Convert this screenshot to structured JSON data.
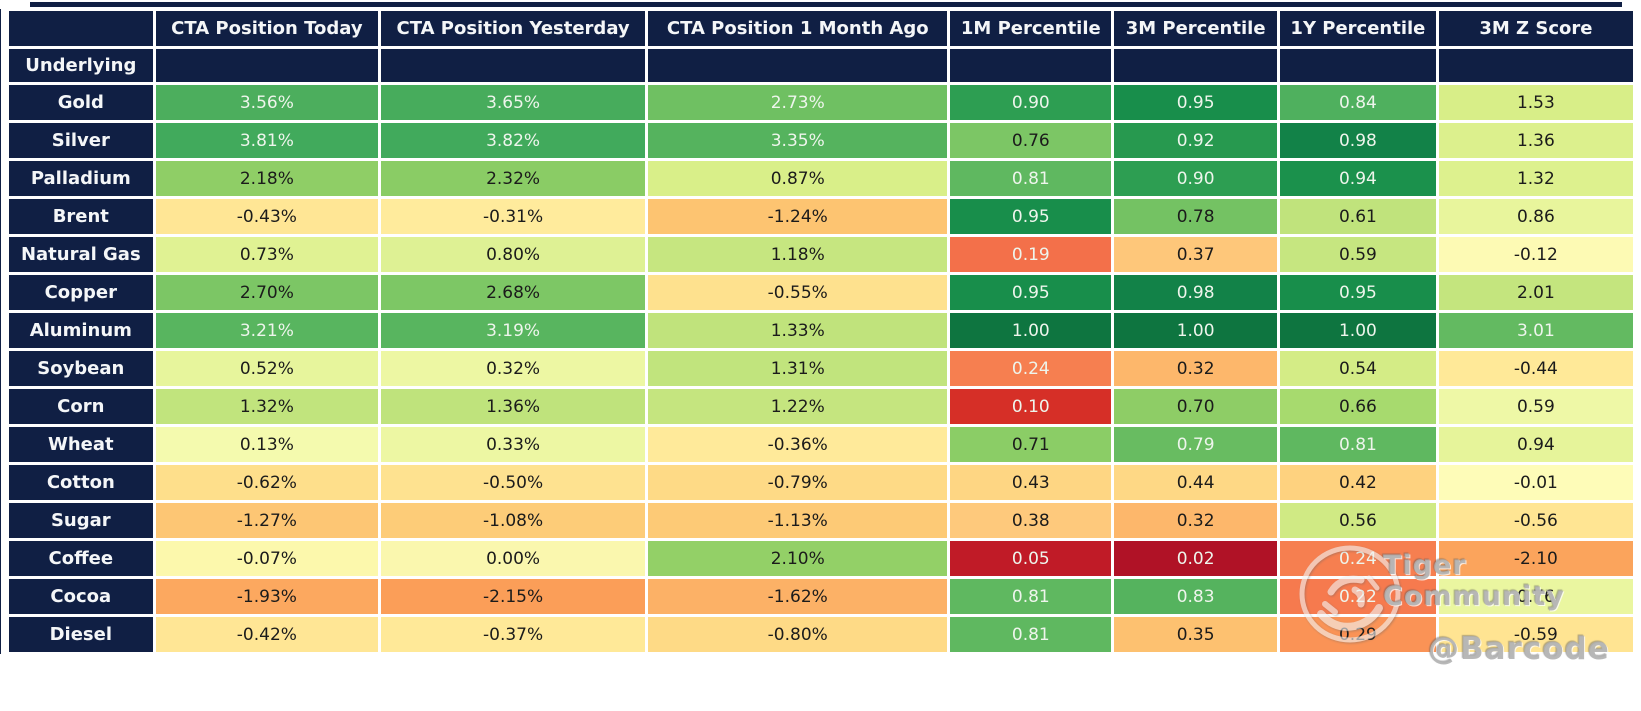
{
  "colors": {
    "header_bg": "#101f44",
    "text_light": "#eef5ec",
    "text_dark": "#1b1b1b",
    "page_bg": "#ffffff"
  },
  "watermark": {
    "community_label": "Tiger Community",
    "handle": "@Barcode",
    "stamp_icon": "circular-stamp"
  },
  "chart_data": {
    "type": "table",
    "subtype": "heatmap",
    "title": "",
    "row_header": "Underlying",
    "colormap": "red-yellow-green",
    "columns": [
      "CTA Position Today",
      "CTA Position Yesterday",
      "CTA Position 1 Month Ago",
      "1M Percentile",
      "3M Percentile",
      "1Y Percentile",
      "3M Z Score"
    ],
    "rows": [
      {
        "label": "Gold",
        "values": [
          "3.56%",
          "3.65%",
          "2.73%",
          "0.90",
          "0.95",
          "0.84",
          "1.53"
        ],
        "bg": [
          "#4cae5d",
          "#47ac5c",
          "#6fc062",
          "#2d9e52",
          "#188e4b",
          "#4fb05e",
          "#d8ee88"
        ],
        "fg": [
          "w",
          "w",
          "w",
          "w",
          "w",
          "w",
          "d"
        ]
      },
      {
        "label": "Silver",
        "values": [
          "3.81%",
          "3.82%",
          "3.35%",
          "0.76",
          "0.92",
          "0.98",
          "1.36"
        ],
        "bg": [
          "#41aa5c",
          "#41aa5c",
          "#55b35e",
          "#7cc665",
          "#27994f",
          "#128248",
          "#dcf08d"
        ],
        "fg": [
          "w",
          "w",
          "w",
          "d",
          "w",
          "w",
          "d"
        ]
      },
      {
        "label": "Palladium",
        "values": [
          "2.18%",
          "2.32%",
          "0.87%",
          "0.81",
          "0.90",
          "0.94",
          "1.32"
        ],
        "bg": [
          "#8fce66",
          "#8acc65",
          "#d9ef89",
          "#5fb860",
          "#2d9e52",
          "#1b914c",
          "#ddf18e"
        ],
        "fg": [
          "d",
          "d",
          "d",
          "w",
          "w",
          "w",
          "d"
        ]
      },
      {
        "label": "Brent",
        "values": [
          "-0.43%",
          "-0.31%",
          "-1.24%",
          "0.95",
          "0.78",
          "0.61",
          "0.86"
        ],
        "bg": [
          "#ffe695",
          "#ffeb9c",
          "#fdc471",
          "#188e4b",
          "#74c263",
          "#c0e37c",
          "#e8f59c"
        ],
        "fg": [
          "d",
          "d",
          "d",
          "w",
          "d",
          "d",
          "d"
        ]
      },
      {
        "label": "Natural Gas",
        "values": [
          "0.73%",
          "0.80%",
          "1.18%",
          "0.19",
          "0.37",
          "0.59",
          "-0.12"
        ],
        "bg": [
          "#e0f293",
          "#def194",
          "#c6e680",
          "#f3704a",
          "#fec77a",
          "#c6e680",
          "#fdfab4"
        ],
        "fg": [
          "d",
          "d",
          "d",
          "w",
          "d",
          "d",
          "d"
        ]
      },
      {
        "label": "Copper",
        "values": [
          "2.70%",
          "2.68%",
          "-0.55%",
          "0.95",
          "0.98",
          "0.95",
          "2.01"
        ],
        "bg": [
          "#7cc665",
          "#7dc765",
          "#fee18e",
          "#188e4b",
          "#128248",
          "#188e4b",
          "#c4e57e"
        ],
        "fg": [
          "d",
          "d",
          "d",
          "w",
          "w",
          "w",
          "d"
        ]
      },
      {
        "label": "Aluminum",
        "values": [
          "3.21%",
          "3.19%",
          "1.33%",
          "1.00",
          "1.00",
          "1.00",
          "3.01"
        ],
        "bg": [
          "#58b55f",
          "#58b55f",
          "#c0e37c",
          "#0e7540",
          "#0e7540",
          "#0e7540",
          "#63ba61"
        ],
        "fg": [
          "w",
          "w",
          "d",
          "w",
          "w",
          "w",
          "w"
        ]
      },
      {
        "label": "Soybean",
        "values": [
          "0.52%",
          "0.32%",
          "1.31%",
          "0.24",
          "0.32",
          "0.54",
          "-0.44"
        ],
        "bg": [
          "#e7f59c",
          "#edf7a3",
          "#c1e47d",
          "#f67f50",
          "#fdb76b",
          "#d4ec86",
          "#ffe998"
        ],
        "fg": [
          "d",
          "d",
          "d",
          "w",
          "d",
          "d",
          "d"
        ]
      },
      {
        "label": "Corn",
        "values": [
          "1.32%",
          "1.36%",
          "1.22%",
          "0.10",
          "0.70",
          "0.66",
          "0.59"
        ],
        "bg": [
          "#c1e47d",
          "#bfe37c",
          "#c5e57f",
          "#d62f27",
          "#8ecd66",
          "#a7da6e",
          "#eef8a6"
        ],
        "fg": [
          "d",
          "d",
          "d",
          "w",
          "d",
          "d",
          "d"
        ]
      },
      {
        "label": "Wheat",
        "values": [
          "0.13%",
          "0.33%",
          "-0.36%",
          "0.71",
          "0.79",
          "0.81",
          "0.94"
        ],
        "bg": [
          "#f4faae",
          "#edf7a3",
          "#ffea9a",
          "#8bcd66",
          "#68bc61",
          "#5fb860",
          "#e6f49a"
        ],
        "fg": [
          "d",
          "d",
          "d",
          "d",
          "w",
          "w",
          "d"
        ]
      },
      {
        "label": "Cotton",
        "values": [
          "-0.62%",
          "-0.50%",
          "-0.79%",
          "0.43",
          "0.44",
          "0.42",
          "-0.01"
        ],
        "bg": [
          "#fedf8b",
          "#fee290",
          "#feda86",
          "#fed683",
          "#fed885",
          "#fed27f",
          "#fefcb8"
        ],
        "fg": [
          "d",
          "d",
          "d",
          "d",
          "d",
          "d",
          "d"
        ]
      },
      {
        "label": "Sugar",
        "values": [
          "-1.27%",
          "-1.08%",
          "-1.13%",
          "0.38",
          "0.32",
          "0.56",
          "-0.56"
        ],
        "bg": [
          "#fdc674",
          "#fdcc78",
          "#fdca76",
          "#fec97c",
          "#fdb76b",
          "#d0ea84",
          "#ffe593"
        ],
        "fg": [
          "d",
          "d",
          "d",
          "d",
          "d",
          "d",
          "d"
        ]
      },
      {
        "label": "Coffee",
        "values": [
          "-0.07%",
          "0.00%",
          "2.10%",
          "0.05",
          "0.02",
          "0.24",
          "-2.10"
        ],
        "bg": [
          "#fcf8ac",
          "#faf7ae",
          "#93d067",
          "#c01b27",
          "#b01226",
          "#f67f50",
          "#fba45c"
        ],
        "fg": [
          "d",
          "d",
          "d",
          "w",
          "w",
          "w",
          "d"
        ]
      },
      {
        "label": "Cocoa",
        "values": [
          "-1.93%",
          "-2.15%",
          "-1.62%",
          "0.81",
          "0.83",
          "0.22",
          "0.76"
        ],
        "bg": [
          "#fca85f",
          "#fb9e58",
          "#fcb166",
          "#5fb860",
          "#55b35e",
          "#f67a4e",
          "#eaf6a0"
        ],
        "fg": [
          "d",
          "d",
          "d",
          "w",
          "w",
          "w",
          "d"
        ]
      },
      {
        "label": "Diesel",
        "values": [
          "-0.42%",
          "-0.37%",
          "-0.80%",
          "0.81",
          "0.35",
          "0.29",
          "-0.59"
        ],
        "bg": [
          "#ffe695",
          "#ffe998",
          "#feda86",
          "#5fb860",
          "#fdc170",
          "#fa9356",
          "#ffe492"
        ],
        "fg": [
          "d",
          "d",
          "d",
          "w",
          "d",
          "d",
          "d"
        ]
      }
    ]
  }
}
